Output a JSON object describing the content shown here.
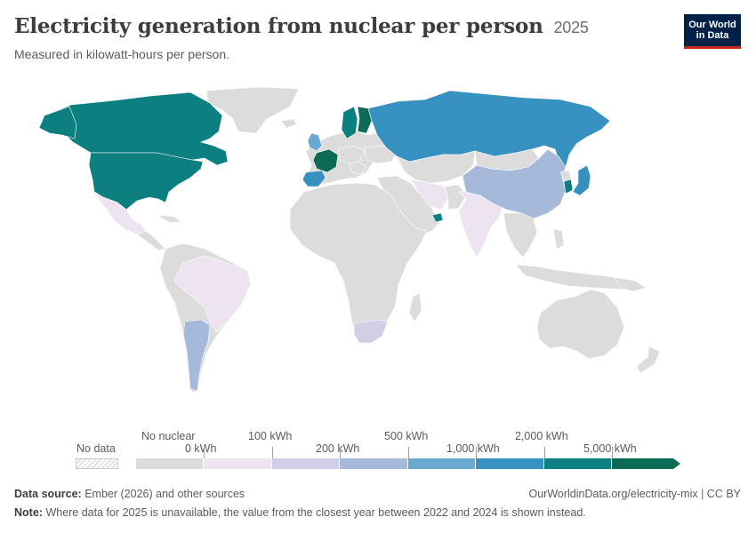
{
  "header": {
    "title": "Electricity generation from nuclear per person",
    "year": "2025",
    "subtitle": "Measured in kilowatt-hours per person.",
    "logo_text": "Our World\nin Data"
  },
  "colors": {
    "no_nuclear": "#dcdcdc",
    "bin_0_100": "#ede3f1",
    "bin_100_200": "#d1cfe6",
    "bin_200_500": "#a5b9db",
    "bin_500_1000": "#6aa9d2",
    "bin_1000_2000": "#3690c0",
    "bin_2000_5000": "#0c8080",
    "bin_5000_plus": "#0c6b56",
    "logo_bg": "#002147",
    "logo_accent": "#ce261e"
  },
  "legend": {
    "no_data": "No data",
    "no_nuclear": "No nuclear",
    "zero": "0 kWh",
    "l100": "100 kWh",
    "l200": "200 kWh",
    "l500": "500 kWh",
    "l1000": "1,000 kWh",
    "l2000": "2,000 kWh",
    "l5000": "5,000 kWh"
  },
  "regions": [
    {
      "name": "Canada",
      "bin": "2000-5000"
    },
    {
      "name": "United States",
      "bin": "2000-5000"
    },
    {
      "name": "Mexico",
      "bin": "0-100"
    },
    {
      "name": "Brazil",
      "bin": "0-100"
    },
    {
      "name": "Argentina",
      "bin": "200-500"
    },
    {
      "name": "France",
      "bin": "5000+"
    },
    {
      "name": "Spain",
      "bin": "1000-2000"
    },
    {
      "name": "United Kingdom",
      "bin": "500-1000"
    },
    {
      "name": "Sweden",
      "bin": "2000-5000"
    },
    {
      "name": "Finland",
      "bin": "5000+"
    },
    {
      "name": "Russia",
      "bin": "1000-2000"
    },
    {
      "name": "China",
      "bin": "200-500"
    },
    {
      "name": "India",
      "bin": "0-100"
    },
    {
      "name": "Iran",
      "bin": "0-100"
    },
    {
      "name": "South Korea",
      "bin": "2000-5000"
    },
    {
      "name": "Japan",
      "bin": "1000-2000"
    },
    {
      "name": "United Arab Emirates",
      "bin": "2000-5000"
    },
    {
      "name": "South Africa",
      "bin": "100-200"
    },
    {
      "name": "Africa",
      "bin": "none"
    },
    {
      "name": "Australia",
      "bin": "none"
    },
    {
      "name": "Greenland",
      "bin": "none"
    }
  ],
  "footer": {
    "source_label": "Data source:",
    "source_text": "Ember (2026) and other sources",
    "url": "OurWorldinData.org/electricity-mix | CC BY",
    "note_label": "Note:",
    "note_text": "Where data for 2025 is unavailable, the value from the closest year between 2022 and 2024 is shown instead."
  }
}
